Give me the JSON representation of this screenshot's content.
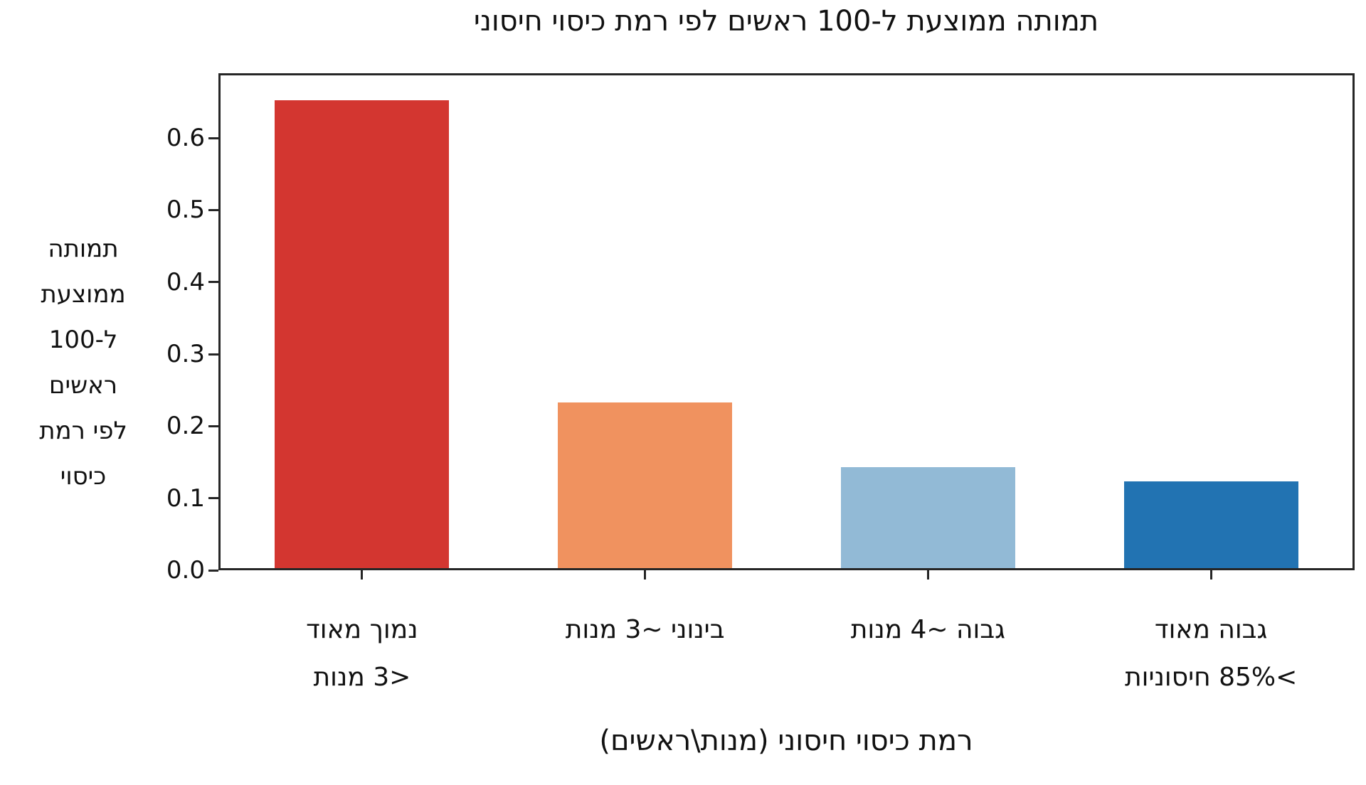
{
  "chart_data": {
    "type": "bar",
    "title": "תמותה ממוצעת ל-100 ראשים לפי רמת כיסוי חיסוני",
    "xlabel": "רמת כיסוי חיסוני (מנות\\ראשים)",
    "ylabel": "תמותה ממוצעת ל-100 ראשים לפי רמת כיסוי",
    "ylabel_lines": [
      "תמותה",
      "ממוצעת",
      "ל-100",
      "ראשים",
      "לפי רמת",
      "כיסוי"
    ],
    "categories": [
      "נמוך מאוד <3 מנות",
      "בינוני ~3 מנות",
      "גבוה ~4 מנות",
      "גבוה מאוד >85% חיסוניות"
    ],
    "category_lines": [
      [
        "נמוך מאוד",
        "<3 מנות"
      ],
      [
        "בינוני ~3 מנות"
      ],
      [
        "גבוה ~4 מנות"
      ],
      [
        "גבוה מאוד",
        ">85% חיסוניות"
      ]
    ],
    "values": [
      0.65,
      0.23,
      0.14,
      0.12
    ],
    "bar_colors": [
      "#d33630",
      "#f0925f",
      "#92bad6",
      "#2273b2"
    ],
    "ylim": [
      0,
      0.69
    ],
    "yticks": [
      "0.0",
      "0.1",
      "0.2",
      "0.3",
      "0.4",
      "0.5",
      "0.6"
    ],
    "grid": false,
    "legend": "none",
    "text_direction": "rtl"
  }
}
